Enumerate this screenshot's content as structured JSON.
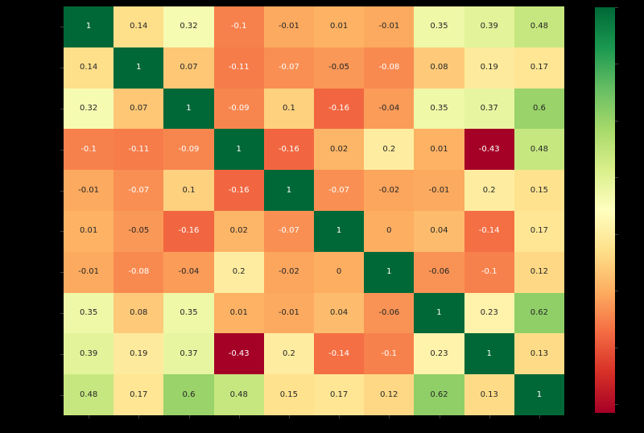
{
  "figure": {
    "background_color": "#000000",
    "plot_type_label": "correlation-heatmap"
  },
  "chart_data": {
    "type": "heatmap",
    "title": "",
    "xlabel": "",
    "ylabel": "",
    "rows": 10,
    "cols": 10,
    "matrix": [
      [
        1,
        0.14,
        0.32,
        -0.1,
        -0.01,
        0.01,
        -0.01,
        0.35,
        0.39,
        0.48
      ],
      [
        0.14,
        1,
        0.07,
        -0.11,
        -0.07,
        -0.05,
        -0.08,
        0.08,
        0.19,
        0.17
      ],
      [
        0.32,
        0.07,
        1,
        -0.09,
        0.1,
        -0.16,
        -0.04,
        0.35,
        0.37,
        0.6
      ],
      [
        -0.1,
        -0.11,
        -0.09,
        1,
        -0.16,
        0.02,
        0.2,
        0.01,
        -0.43,
        0.48
      ],
      [
        -0.01,
        -0.07,
        0.1,
        -0.16,
        1,
        -0.07,
        -0.02,
        -0.01,
        0.2,
        0.15
      ],
      [
        0.01,
        -0.05,
        -0.16,
        0.02,
        -0.07,
        1,
        0,
        0.04,
        -0.14,
        0.17
      ],
      [
        -0.01,
        -0.08,
        -0.04,
        0.2,
        -0.02,
        0,
        1,
        -0.06,
        -0.1,
        0.12
      ],
      [
        0.35,
        0.08,
        0.35,
        0.01,
        -0.01,
        0.04,
        -0.06,
        1,
        0.23,
        0.62
      ],
      [
        0.39,
        0.19,
        0.37,
        -0.43,
        0.2,
        -0.14,
        -0.1,
        0.23,
        1,
        0.13
      ],
      [
        0.48,
        0.17,
        0.6,
        0.48,
        0.15,
        0.17,
        0.12,
        0.62,
        0.13,
        1
      ]
    ],
    "vmin": -0.43,
    "vmax": 1,
    "colormap": "RdYlGn",
    "colormap_anchors": [
      "#a50026",
      "#d73027",
      "#f46d43",
      "#fdae61",
      "#fee08b",
      "#ffffbf",
      "#d9ef8b",
      "#a6d96a",
      "#66bd63",
      "#1a9850",
      "#006837"
    ],
    "annotation_text_colors": {
      "on_dark": "#ffffff",
      "on_light": "#262626"
    },
    "luminance_threshold": 0.408,
    "grid": false,
    "axis_ticks": {
      "color": "#3f3f3f",
      "x_tick_count": 10,
      "y_tick_count": 10,
      "labels_visible": false
    },
    "colorbar": {
      "position": "right",
      "tick_values": [
        1,
        0.8,
        0.6,
        0.4,
        0.2,
        0,
        -0.2,
        -0.4
      ],
      "labels_visible": false
    }
  }
}
